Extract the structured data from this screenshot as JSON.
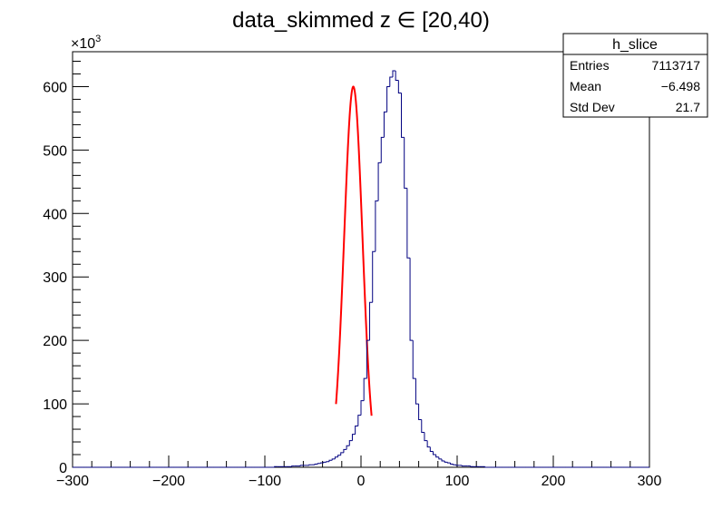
{
  "chart_data": {
    "type": "histogram",
    "title": "data_skimmed z  ∈ [20,40)",
    "xlabel": "",
    "ylabel": "",
    "xlim": [
      -300,
      300
    ],
    "ylim": [
      0,
      655
    ],
    "y_multiplier_label": "×10",
    "y_multiplier_exponent": "3",
    "x_ticks": [
      -300,
      -200,
      -100,
      0,
      100,
      200,
      300
    ],
    "x_tick_labels": [
      "−300",
      "−200",
      "−100",
      "0",
      "100",
      "200",
      "300"
    ],
    "y_ticks": [
      0,
      100,
      200,
      300,
      400,
      500,
      600
    ],
    "y_tick_labels": [
      "0",
      "100",
      "200",
      "300",
      "400",
      "500",
      "600"
    ],
    "grid": false,
    "histogram": {
      "name": "h_slice",
      "color": "#000080",
      "bin_width": 3,
      "bin_start": -300,
      "values": [
        0,
        0,
        0,
        0,
        0,
        0,
        0,
        0,
        0,
        0,
        0,
        0,
        0,
        0,
        0,
        0,
        0,
        0,
        0,
        0,
        0,
        0,
        0,
        0,
        0,
        0,
        0,
        0,
        0,
        0,
        0,
        0,
        0,
        0,
        0,
        0,
        0,
        0,
        0,
        0,
        0,
        0,
        0,
        0,
        0,
        0,
        0,
        0,
        0,
        0,
        0,
        0,
        0,
        0,
        0,
        0,
        0,
        0,
        0,
        0,
        0,
        0,
        0,
        0,
        0,
        0,
        0,
        0,
        0,
        0,
        1,
        1,
        1,
        1,
        1,
        1,
        2,
        2,
        2,
        3,
        3,
        3,
        4,
        4,
        5,
        6,
        7,
        8,
        9,
        11,
        13,
        16,
        19,
        23,
        28,
        34,
        42,
        52,
        65,
        82,
        105,
        140,
        200,
        260,
        340,
        420,
        480,
        520,
        560,
        600,
        615,
        625,
        610,
        590,
        520,
        440,
        330,
        200,
        140,
        100,
        75,
        55,
        42,
        32,
        25,
        20,
        16,
        13,
        10,
        8,
        7,
        5,
        4,
        3,
        3,
        2,
        2,
        2,
        1,
        1,
        1,
        1,
        1,
        0,
        0,
        0,
        0,
        0,
        0,
        0,
        0,
        0,
        0,
        0,
        0,
        0,
        0,
        0,
        0,
        0,
        0,
        0,
        0,
        0,
        0,
        0,
        0,
        0,
        0,
        0,
        0,
        0,
        0,
        0,
        0,
        0,
        0,
        0,
        0,
        0,
        0,
        0,
        0,
        0,
        0,
        0,
        0,
        0,
        0,
        0,
        0,
        0,
        0,
        0,
        0,
        0,
        0,
        0,
        0,
        0
      ]
    },
    "fit": {
      "type": "gaussian",
      "color": "#ff0000",
      "mean": -8,
      "sigma": 9.5,
      "amplitude": 600,
      "range": [
        -26,
        11
      ]
    },
    "stats_box": {
      "title": "h_slice",
      "placement": "top-right",
      "rows": [
        {
          "label": "Entries",
          "value": "7113717"
        },
        {
          "label": "Mean",
          "value": "−6.498"
        },
        {
          "label": "Std Dev",
          "value": "21.7"
        }
      ]
    }
  }
}
